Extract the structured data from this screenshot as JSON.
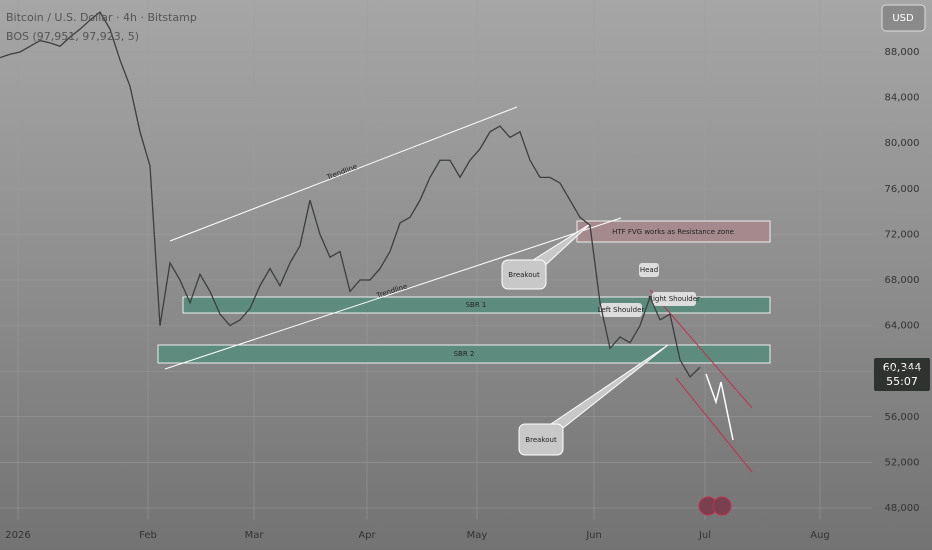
{
  "chart_data": {
    "type": "line",
    "title": "Bitcoin / U.S. Dollar · 4h · Bitstamp",
    "indicator": "BOS (97,951, 97,923, 5)",
    "currency": "USD",
    "last_price_label": "60,344",
    "countdown": "55:07",
    "x_labels": [
      "2026",
      "Feb",
      "Mar",
      "Apr",
      "May",
      "Jun",
      "Jul",
      "Aug"
    ],
    "series": [
      {
        "name": "BTCUSD",
        "color": "#3b3f3e",
        "values": [
          87500,
          87800,
          88000,
          88500,
          89000,
          88800,
          88500,
          89300,
          90000,
          90800,
          91500,
          90000,
          87300,
          85000,
          81000,
          78000,
          64000,
          69500,
          68000,
          66000,
          68500,
          67000,
          65000,
          64000,
          64500,
          65500,
          67500,
          69000,
          67500,
          69500,
          71000,
          75000,
          72000,
          70000,
          70500,
          67000,
          68000,
          68000,
          69000,
          70500,
          73000,
          73500,
          75000,
          77000,
          78500,
          78500,
          77000,
          78500,
          79500,
          81000,
          81500,
          80500,
          81000,
          78500,
          77000,
          77000,
          76500,
          75000,
          73500,
          72800,
          66000,
          62000,
          63000,
          62500,
          64000,
          66500,
          64500,
          65000,
          61000,
          59500,
          60344
        ]
      }
    ],
    "ylim": [
      46990,
      92560
    ],
    "yticks": [
      {
        "value": 48000,
        "label": "48,000"
      },
      {
        "value": 52000,
        "label": "52,000"
      },
      {
        "value": 56000,
        "label": "56,000"
      },
      {
        "value": 60000,
        "label": "60,000"
      },
      {
        "value": 64000,
        "label": "64,000"
      },
      {
        "value": 68000,
        "label": "68,000"
      },
      {
        "value": 72000,
        "label": "72,000"
      },
      {
        "value": 76000,
        "label": "76,000"
      },
      {
        "value": 80000,
        "label": "80,000"
      },
      {
        "value": 84000,
        "label": "84,000"
      },
      {
        "value": 88000,
        "label": "88,000"
      }
    ],
    "grid": true,
    "annotations": {
      "trendline_upper": "Trendline",
      "trendline_lower": "Trendline",
      "sbr1": "SBR 1",
      "sbr2": "SBR 2",
      "fvg": "HTF FVG works as Resistance zone",
      "breakout1": "Breakout",
      "breakout2": "Breakout",
      "head": "Head",
      "left_shoulder": "Left Shoulder",
      "right_shoulder": "Right Shoulder"
    }
  }
}
